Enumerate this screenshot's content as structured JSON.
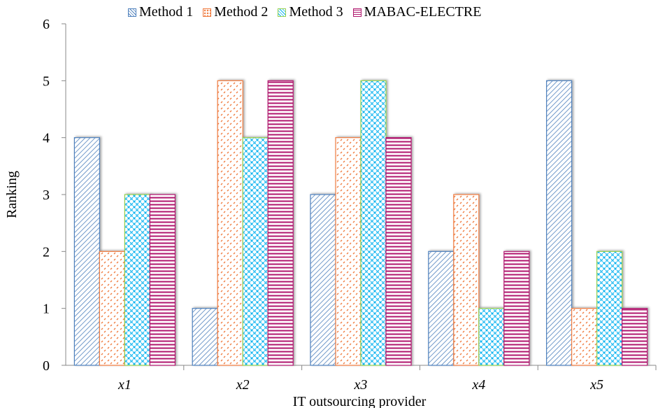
{
  "chart_data": {
    "type": "bar",
    "title": "",
    "xlabel": "IT outsourcing provider",
    "ylabel": "Ranking",
    "categories": [
      "x1",
      "x2",
      "x3",
      "x4",
      "x5"
    ],
    "ylim": [
      0,
      6
    ],
    "yticks": [
      "0",
      "1",
      "2",
      "3",
      "4",
      "5",
      "6"
    ],
    "grid": false,
    "legend_position": "top",
    "series": [
      {
        "name": "Method 1",
        "values": [
          4,
          1,
          3,
          2,
          5
        ],
        "color": "#4f81bd",
        "pattern": "diagonal-hatch"
      },
      {
        "name": "Method 2",
        "values": [
          2,
          5,
          4,
          3,
          1
        ],
        "color": "#f07b3f",
        "pattern": "dotted"
      },
      {
        "name": "Method 3",
        "values": [
          3,
          4,
          5,
          1,
          2
        ],
        "color": "#00b0f0",
        "pattern": "crosshatch",
        "border": "#92d050"
      },
      {
        "name": "MABAC-ELECTRE",
        "values": [
          3,
          5,
          4,
          2,
          1
        ],
        "color": "#b0186e",
        "pattern": "horizontal-lines"
      }
    ]
  }
}
